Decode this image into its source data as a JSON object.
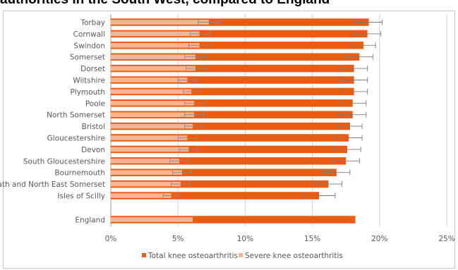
{
  "title": "authorities in the South West, compared to England",
  "chart_data": {
    "type": "bar",
    "orientation": "horizontal",
    "categories": [
      "Torbay",
      "Cornwall",
      "Swindon",
      "Somerset",
      "Dorset",
      "Wiltshire",
      "Plymouth",
      "Poole",
      "North Somerset",
      "Bristol",
      "Gloucestershire",
      "Devon",
      "South Gloucestershire",
      "Bournemouth",
      "Bath and North East Somerset",
      "Isles of Scilly",
      "England"
    ],
    "series": [
      {
        "name": "Total knee osteoarthritis",
        "color": "#e95c12",
        "values": [
          19.2,
          19.1,
          18.8,
          18.5,
          18.1,
          18.1,
          18.1,
          18.0,
          18.0,
          17.8,
          17.7,
          17.6,
          17.5,
          16.8,
          16.2,
          15.5,
          18.2
        ],
        "error_low": [
          18.2,
          18.1,
          17.9,
          17.5,
          17.1,
          17.1,
          17.1,
          17.0,
          17.0,
          16.9,
          16.7,
          16.6,
          16.5,
          15.8,
          15.2,
          14.4,
          null
        ],
        "error_high": [
          20.2,
          20.1,
          19.7,
          19.5,
          19.1,
          19.1,
          19.1,
          19.0,
          19.0,
          18.7,
          18.7,
          18.6,
          18.5,
          17.8,
          17.2,
          16.7,
          null
        ]
      },
      {
        "name": "Severe knee osteoarthritis",
        "color": "#f6b595",
        "values": [
          7.3,
          6.6,
          6.6,
          6.3,
          6.3,
          5.7,
          6.0,
          6.2,
          6.2,
          6.1,
          5.7,
          5.8,
          5.1,
          5.3,
          5.2,
          4.5,
          6.1
        ],
        "error_low": [
          6.5,
          5.9,
          5.8,
          5.5,
          5.6,
          5.0,
          5.4,
          5.5,
          5.5,
          5.5,
          5.0,
          5.1,
          4.4,
          4.6,
          4.5,
          3.9,
          null
        ],
        "error_high": [
          8.1,
          7.4,
          7.5,
          7.1,
          7.1,
          6.4,
          6.7,
          7.0,
          6.9,
          6.8,
          6.4,
          6.5,
          5.8,
          6.0,
          5.9,
          5.1,
          null
        ]
      }
    ],
    "x_ticks": [
      "0%",
      "5%",
      "10%",
      "15%",
      "20%",
      "25%"
    ],
    "xlim": [
      0,
      25
    ],
    "grid": true,
    "legend_position": "bottom"
  }
}
